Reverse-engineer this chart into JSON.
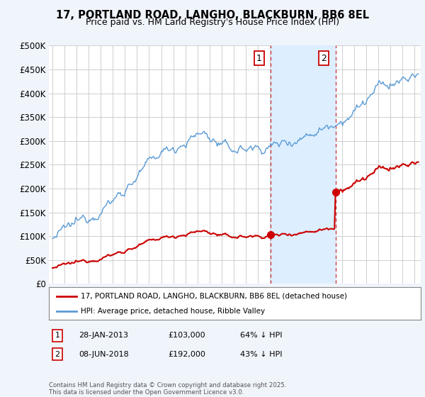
{
  "title": "17, PORTLAND ROAD, LANGHO, BLACKBURN, BB6 8EL",
  "subtitle": "Price paid vs. HM Land Registry's House Price Index (HPI)",
  "ylim": [
    0,
    500000
  ],
  "yticks": [
    0,
    50000,
    100000,
    150000,
    200000,
    250000,
    300000,
    350000,
    400000,
    450000,
    500000
  ],
  "ytick_labels": [
    "£0",
    "£50K",
    "£100K",
    "£150K",
    "£200K",
    "£250K",
    "£300K",
    "£350K",
    "£400K",
    "£450K",
    "£500K"
  ],
  "xlim_start": 1994.7,
  "xlim_end": 2025.5,
  "hpi_color": "#5b9bd5",
  "price_color": "#cc0000",
  "sale1_date": 2013.08,
  "sale1_price": 103000,
  "sale1_label": "1",
  "sale2_date": 2018.44,
  "sale2_price": 192000,
  "sale2_label": "2",
  "legend_line1": "17, PORTLAND ROAD, LANGHO, BLACKBURN, BB6 8EL (detached house)",
  "legend_line2": "HPI: Average price, detached house, Ribble Valley",
  "table_row1": [
    "1",
    "28-JAN-2013",
    "£103,000",
    "64% ↓ HPI"
  ],
  "table_row2": [
    "2",
    "08-JUN-2018",
    "£192,000",
    "43% ↓ HPI"
  ],
  "footnote": "Contains HM Land Registry data © Crown copyright and database right 2025.\nThis data is licensed under the Open Government Licence v3.0.",
  "background_color": "#f0f4fb",
  "plot_bg_color": "#ffffff",
  "grid_color": "#c8c8c8",
  "shade_color": "#ddeeff",
  "vline_color": "#cc0000"
}
